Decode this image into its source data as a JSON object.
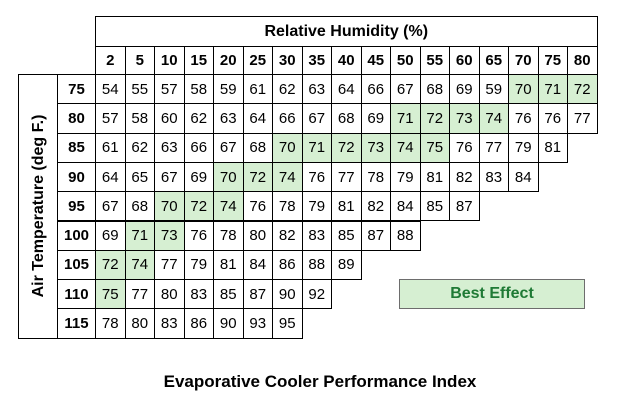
{
  "chart_data": {
    "type": "table",
    "title": "Evaporative Cooler Performance Index",
    "column_header": "Relative Humidity (%)",
    "row_header": "Air Temperature (deg F.)",
    "humidity": [
      2,
      5,
      10,
      15,
      20,
      25,
      30,
      35,
      40,
      45,
      50,
      55,
      60,
      65,
      70,
      75,
      80
    ],
    "rows": [
      {
        "temp": 75,
        "values": [
          54,
          55,
          57,
          58,
          59,
          61,
          62,
          63,
          64,
          66,
          67,
          68,
          69,
          59,
          70,
          71,
          72
        ]
      },
      {
        "temp": 80,
        "values": [
          57,
          58,
          60,
          62,
          63,
          64,
          66,
          67,
          68,
          69,
          71,
          72,
          73,
          74,
          76,
          76,
          77
        ]
      },
      {
        "temp": 85,
        "values": [
          61,
          62,
          63,
          66,
          67,
          68,
          70,
          71,
          72,
          73,
          74,
          75,
          76,
          77,
          79,
          81
        ]
      },
      {
        "temp": 90,
        "values": [
          64,
          65,
          67,
          69,
          70,
          72,
          74,
          76,
          77,
          78,
          79,
          81,
          82,
          83,
          84
        ]
      },
      {
        "temp": 95,
        "values": [
          67,
          68,
          70,
          72,
          74,
          76,
          78,
          79,
          81,
          82,
          84,
          85,
          87
        ]
      },
      {
        "temp": 100,
        "values": [
          69,
          71,
          73,
          76,
          78,
          80,
          82,
          83,
          85,
          87,
          88
        ]
      },
      {
        "temp": 105,
        "values": [
          72,
          74,
          77,
          79,
          81,
          84,
          86,
          88,
          89
        ]
      },
      {
        "temp": 110,
        "values": [
          75,
          77,
          80,
          83,
          85,
          87,
          90,
          92
        ]
      },
      {
        "temp": 115,
        "values": [
          78,
          80,
          83,
          86,
          90,
          93,
          95
        ]
      }
    ],
    "best_effect_cells": [
      [
        0,
        14
      ],
      [
        0,
        15
      ],
      [
        0,
        16
      ],
      [
        1,
        10
      ],
      [
        1,
        11
      ],
      [
        1,
        12
      ],
      [
        1,
        13
      ],
      [
        2,
        6
      ],
      [
        2,
        7
      ],
      [
        2,
        8
      ],
      [
        2,
        9
      ],
      [
        2,
        10
      ],
      [
        2,
        11
      ],
      [
        3,
        4
      ],
      [
        3,
        5
      ],
      [
        3,
        6
      ],
      [
        4,
        2
      ],
      [
        4,
        3
      ],
      [
        4,
        4
      ],
      [
        5,
        1
      ],
      [
        5,
        2
      ],
      [
        6,
        0
      ],
      [
        6,
        1
      ],
      [
        7,
        0
      ]
    ],
    "legend": "Best Effect",
    "colors": {
      "best_effect_fill": "#d6efd2",
      "best_effect_text": "#1f7a35",
      "grid": "#000000"
    }
  }
}
